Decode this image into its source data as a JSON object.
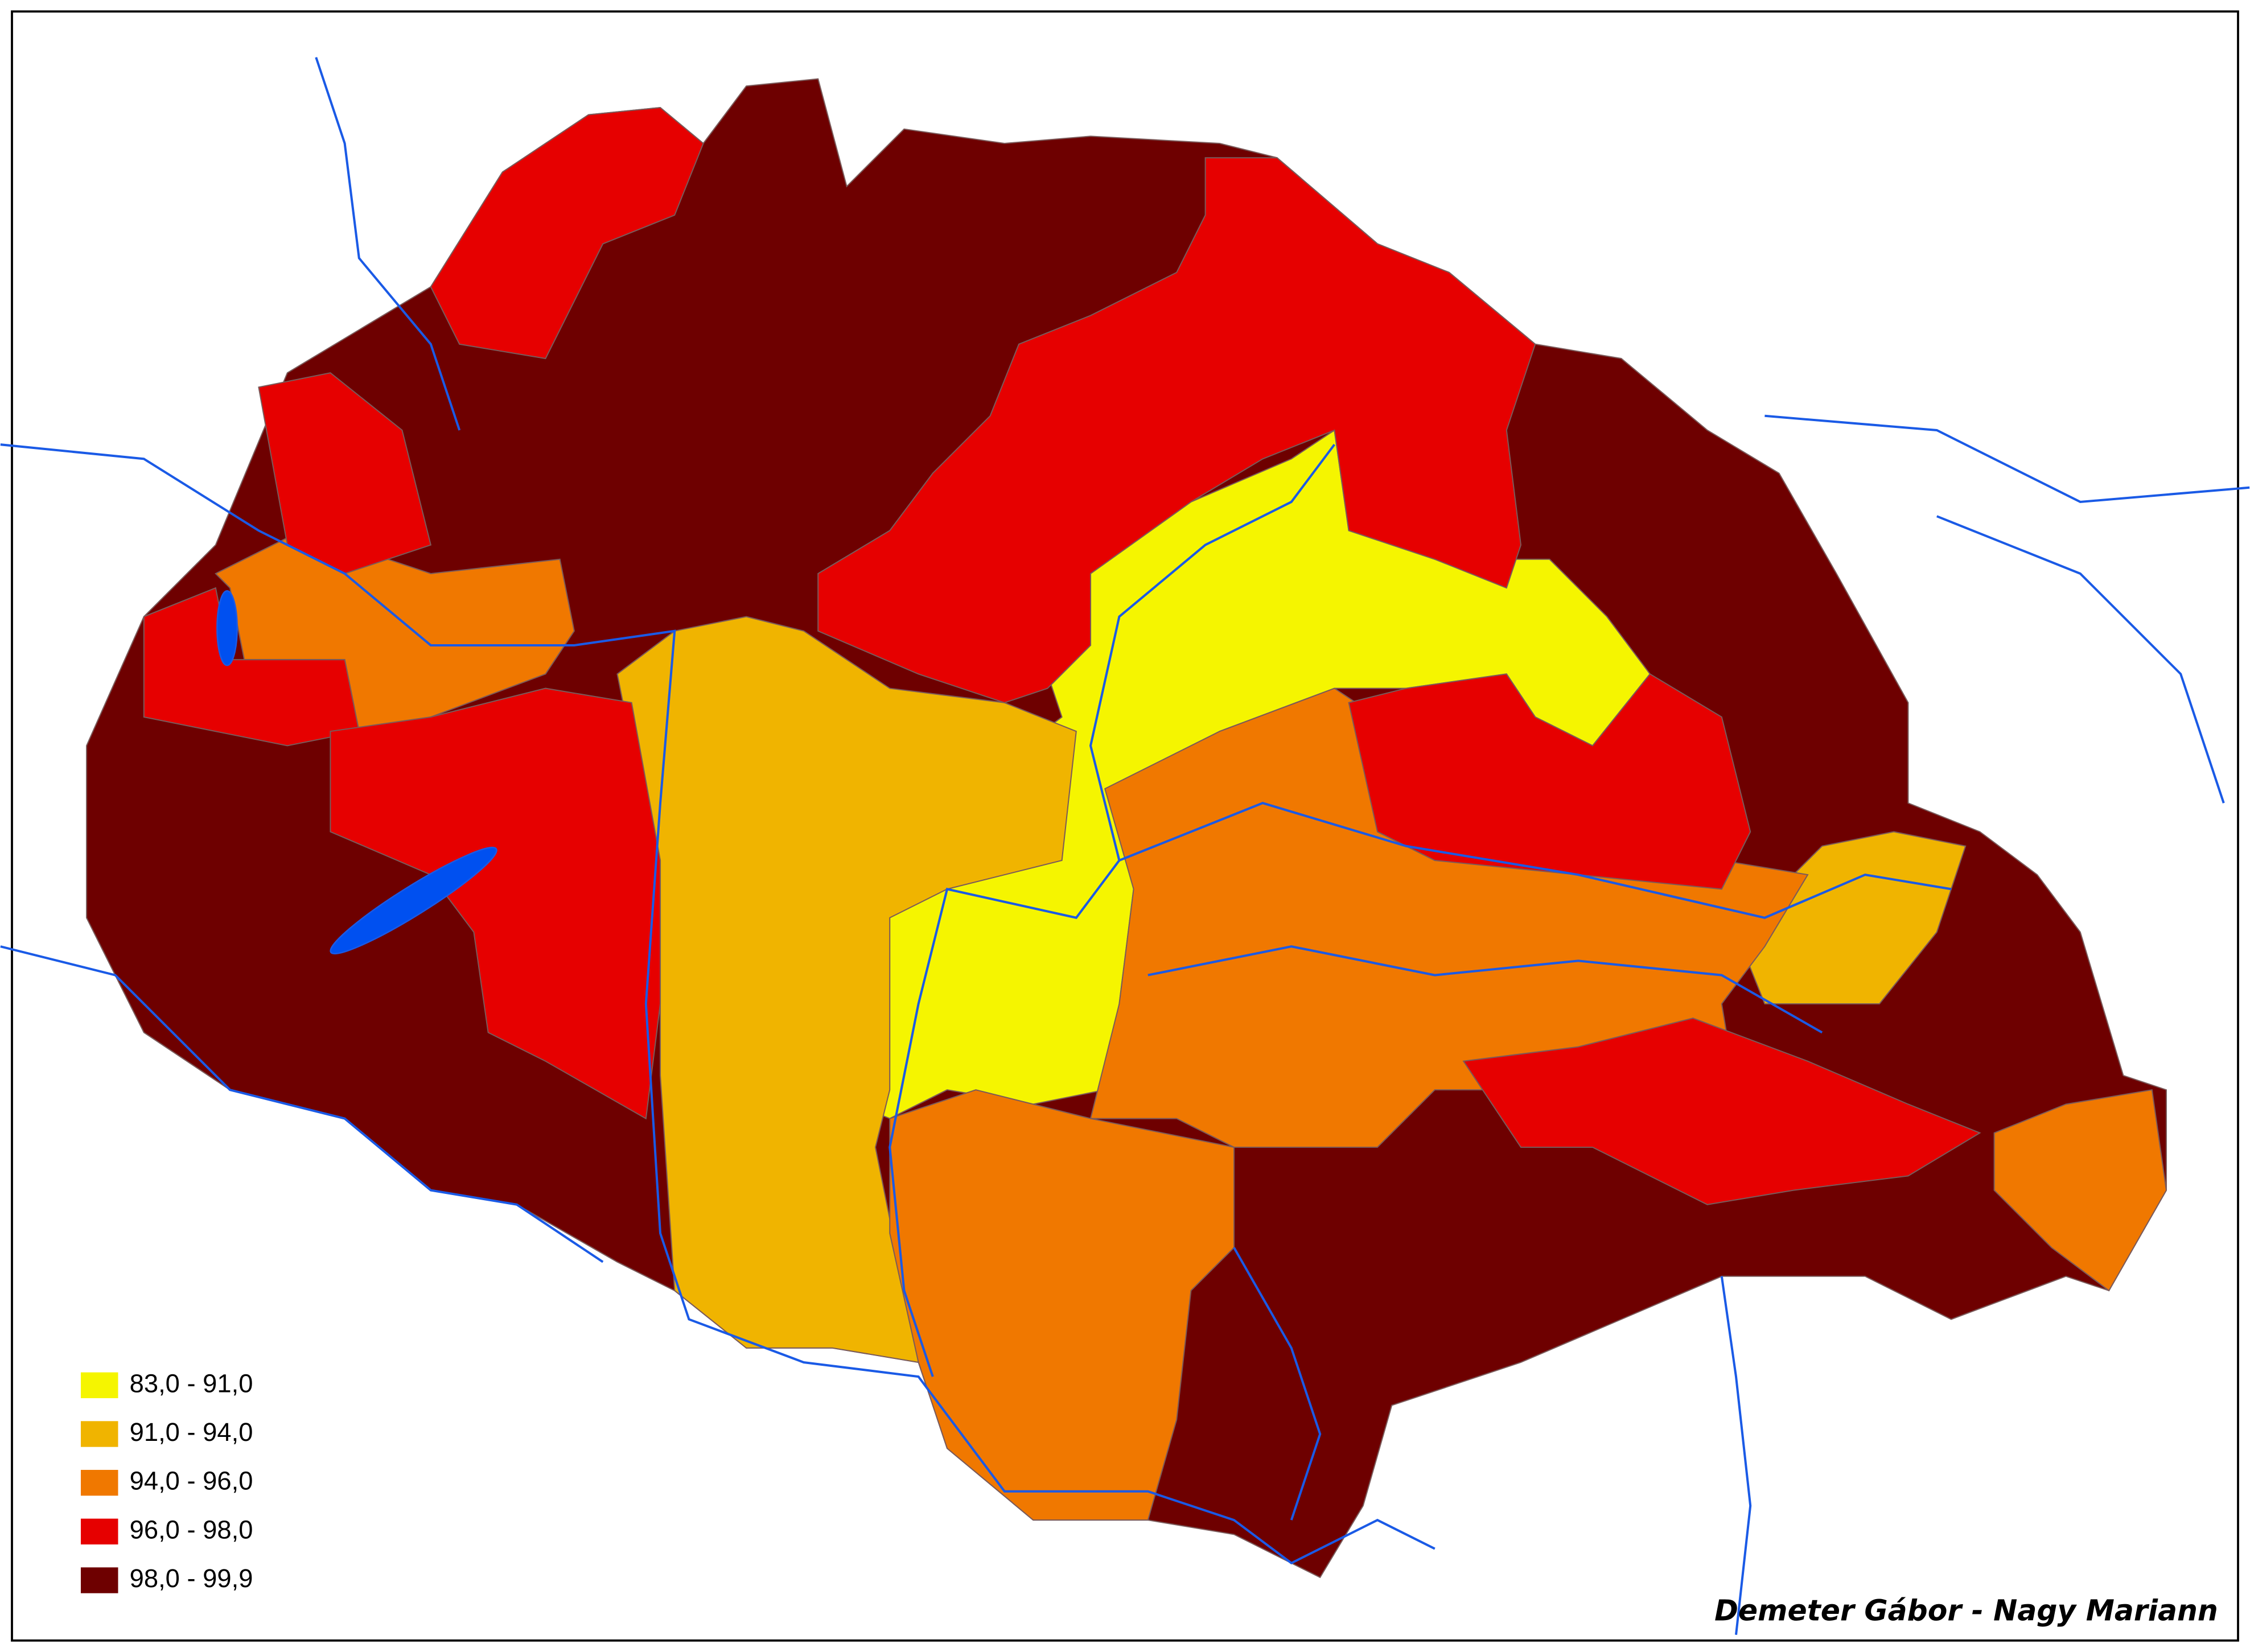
{
  "legend": {
    "items": [
      {
        "label": "83,0  - 91,0",
        "color": "#f5f500"
      },
      {
        "label": "91,0  - 94,0",
        "color": "#f0b400"
      },
      {
        "label": "94,0  - 96,0",
        "color": "#f07800"
      },
      {
        "label": "96,0  - 98,0",
        "color": "#e60000"
      },
      {
        "label": "98,0  - 99,9",
        "color": "#6e0000"
      }
    ]
  },
  "credit": "Demeter Gábor - Nagy Mariann"
}
